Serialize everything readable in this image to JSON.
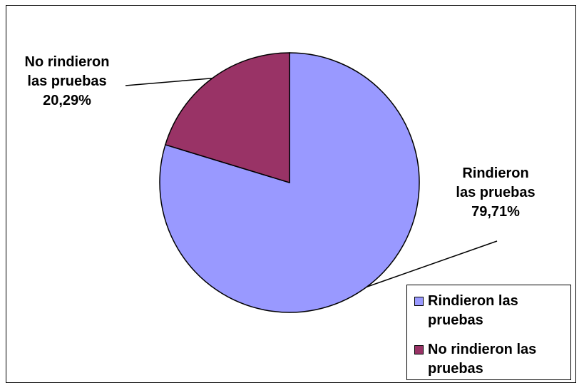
{
  "chart_data": {
    "type": "pie",
    "title": "",
    "start_angle_deg": 0,
    "direction": "clockwise",
    "legend_placement": "bottom-right",
    "slices": [
      {
        "label_line1": "Rindieron",
        "label_line2": "las pruebas",
        "percent_text": "79,71%",
        "value": 79.71,
        "color": "#9999ff",
        "legend_label": "Rindieron las pruebas"
      },
      {
        "label_line1": "No rindieron",
        "label_line2": "las pruebas",
        "percent_text": "20,29%",
        "value": 20.29,
        "color": "#993366",
        "legend_label": "No rindieron las pruebas"
      }
    ]
  }
}
